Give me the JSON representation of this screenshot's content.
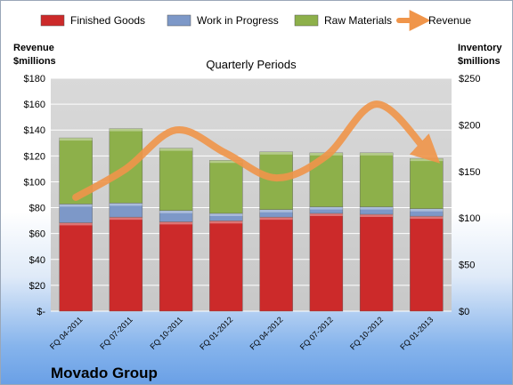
{
  "company": "Movado Group",
  "chart_data": {
    "type": "bar",
    "stacked": true,
    "subtitle": "Quarterly Periods",
    "left_axis_title": [
      "Revenue",
      "$millions"
    ],
    "right_axis_title": [
      "Inventory",
      "$millions"
    ],
    "categories": [
      "FQ 04-2011",
      "FQ 07-2011",
      "FQ 10-2011",
      "FQ 01-2012",
      "FQ 04-2012",
      "FQ 07-2012",
      "FQ 10-2012",
      "FQ 01-2013"
    ],
    "left_axis": {
      "min": 0,
      "max": 180,
      "step": 20,
      "ticks": [
        "$-",
        "$20",
        "$40",
        "$60",
        "$80",
        "$100",
        "$120",
        "$140",
        "$160",
        "$180"
      ]
    },
    "right_axis": {
      "min": 0,
      "max": 250,
      "step": 50,
      "ticks": [
        "$0",
        "$50",
        "$100",
        "$150",
        "$200",
        "$250"
      ]
    },
    "series": [
      {
        "name": "Finished Goods",
        "axis": "right",
        "color": "#cc2a2a",
        "values": [
          95,
          101,
          96,
          97,
          101,
          105,
          104,
          102
        ]
      },
      {
        "name": "Work in Progress",
        "axis": "right",
        "color": "#7d98c8",
        "values": [
          20,
          15,
          12,
          8,
          8,
          7,
          8,
          8
        ]
      },
      {
        "name": "Raw Materials",
        "axis": "right",
        "color": "#8db04a",
        "values": [
          71,
          80,
          67,
          57,
          62,
          58,
          58,
          54
        ]
      },
      {
        "name": "Revenue",
        "axis": "left",
        "type": "line",
        "color": "#f0954a",
        "values": [
          88,
          110,
          140,
          122,
          103,
          120,
          160,
          124
        ]
      }
    ],
    "grid": true,
    "legend": "top"
  }
}
